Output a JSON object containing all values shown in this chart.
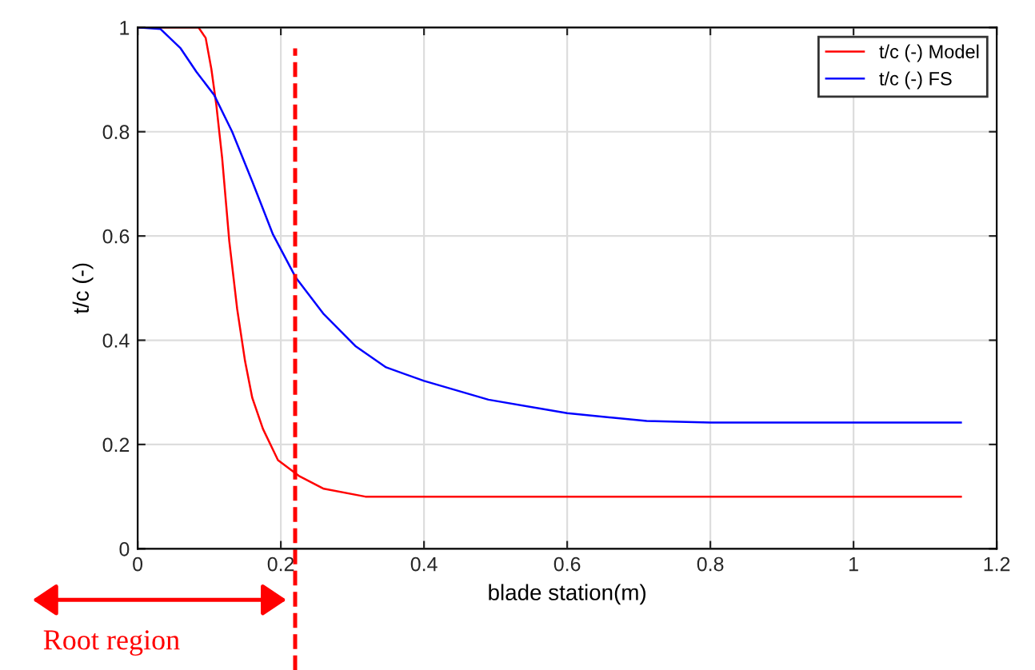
{
  "chart_data": {
    "type": "line",
    "xlabel": "blade station(m)",
    "ylabel": "t/c (-)",
    "xlim": [
      0,
      1.2
    ],
    "ylim": [
      0,
      1
    ],
    "xticks": [
      0,
      0.2,
      0.4,
      0.6,
      0.8,
      1,
      1.2
    ],
    "yticks": [
      0,
      0.2,
      0.4,
      0.6,
      0.8,
      1
    ],
    "grid": true,
    "legend": "top right",
    "line_style": "solid",
    "marker": "none",
    "series": [
      {
        "name": "t/c (-) Model",
        "color": "#ff0000",
        "x": [
          0,
          0.085,
          0.095,
          0.103,
          0.11,
          0.118,
          0.128,
          0.139,
          0.15,
          0.16,
          0.175,
          0.196,
          0.225,
          0.26,
          0.318,
          0.4,
          1.15
        ],
        "values": [
          1,
          1,
          0.98,
          0.92,
          0.85,
          0.75,
          0.59,
          0.46,
          0.36,
          0.29,
          0.23,
          0.17,
          0.14,
          0.115,
          0.1,
          0.1,
          0.1
        ]
      },
      {
        "name": "t/c (-) FS",
        "color": "#0000ff",
        "x": [
          0,
          0.032,
          0.06,
          0.082,
          0.107,
          0.132,
          0.16,
          0.189,
          0.221,
          0.26,
          0.304,
          0.347,
          0.4,
          0.49,
          0.6,
          0.711,
          0.8,
          1.15
        ],
        "values": [
          1,
          0.997,
          0.96,
          0.915,
          0.87,
          0.8,
          0.705,
          0.603,
          0.52,
          0.45,
          0.389,
          0.348,
          0.322,
          0.286,
          0.26,
          0.245,
          0.242,
          0.242
        ]
      }
    ],
    "ref_lines": [
      {
        "axis": "x",
        "value": 0.22,
        "color": "#ff0000",
        "line_style": "dashed"
      }
    ],
    "annotations": [
      "Root region"
    ]
  }
}
